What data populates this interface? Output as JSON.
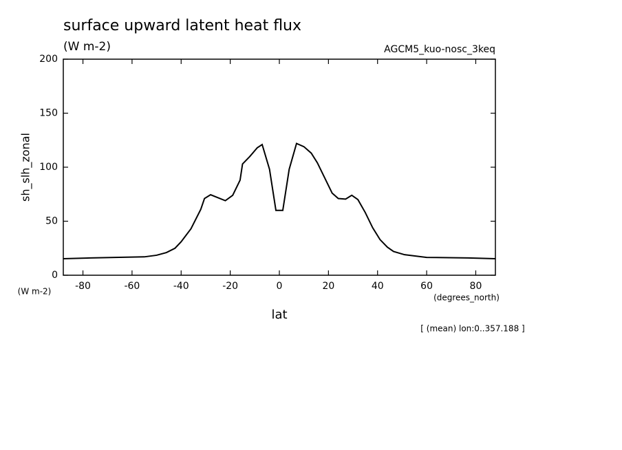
{
  "chart_data": {
    "type": "line",
    "title": "surface upward latent heat flux",
    "subtitle": "(W m-2)",
    "run_label": "AGCM5_kuo-nosc_3keq",
    "ylabel": "sh_slh_zonal",
    "y_units": "(W m-2)",
    "xlabel": "lat",
    "x_units": "(degrees_north)",
    "note": "[ (mean) lon:0..357.188 ]",
    "x": [
      -88,
      -77,
      -67,
      -55,
      -50,
      -46,
      -42.5,
      -40,
      -36,
      -32,
      -30.5,
      -28,
      -22,
      -19,
      -16,
      -15,
      -12,
      -9,
      -7,
      -4,
      -1.4,
      1.4,
      4,
      7,
      10,
      13,
      15.5,
      18.5,
      21.5,
      24,
      27,
      29.5,
      32,
      35,
      38,
      41,
      44,
      46.5,
      51,
      60,
      77,
      88
    ],
    "series": [
      {
        "color": "#000000",
        "values": [
          15.3,
          16,
          16.5,
          17,
          18.5,
          21,
          25,
          31,
          43,
          61,
          71,
          74.5,
          69,
          74,
          88,
          103,
          110,
          118,
          121,
          98,
          60,
          60,
          98,
          122,
          119,
          113,
          104,
          90,
          76,
          71,
          70.5,
          74,
          70,
          58,
          44,
          33,
          26,
          22,
          19,
          16.5,
          16,
          15.3
        ]
      }
    ],
    "xlim": [
      -88,
      88
    ],
    "ylim": [
      0,
      200
    ],
    "xticks": [
      -80,
      -60,
      -40,
      -20,
      0,
      20,
      40,
      60,
      80
    ],
    "yticks": [
      0,
      50,
      100,
      150,
      200
    ]
  }
}
